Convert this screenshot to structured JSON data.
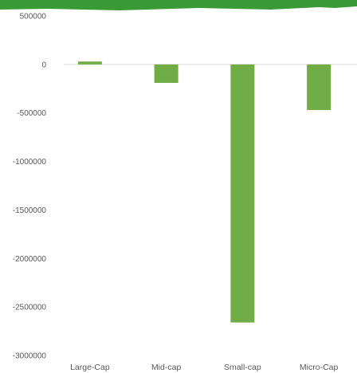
{
  "chart_data": {
    "type": "bar",
    "title": "",
    "xlabel": "",
    "ylabel": "",
    "categories": [
      "Large-Cap",
      "Mid-cap",
      "Small-cap",
      "Micro-Cap"
    ],
    "values": [
      30000,
      -190000,
      -2660000,
      -470000
    ],
    "ylim": [
      -3000000,
      500000
    ],
    "yticks": [
      500000,
      0,
      -500000,
      -1000000,
      -1500000,
      -2000000,
      -2500000,
      -3000000
    ],
    "ytick_labels": [
      "500000",
      "0",
      "-500000",
      "-1000000",
      "-1500000",
      "-2000000",
      "-2500000",
      "-3000000"
    ],
    "grid": false,
    "legend": "none"
  },
  "colors": {
    "bar": "#70ad47",
    "zero_line": "#d9d9d9",
    "banner": "#3a9a35"
  }
}
